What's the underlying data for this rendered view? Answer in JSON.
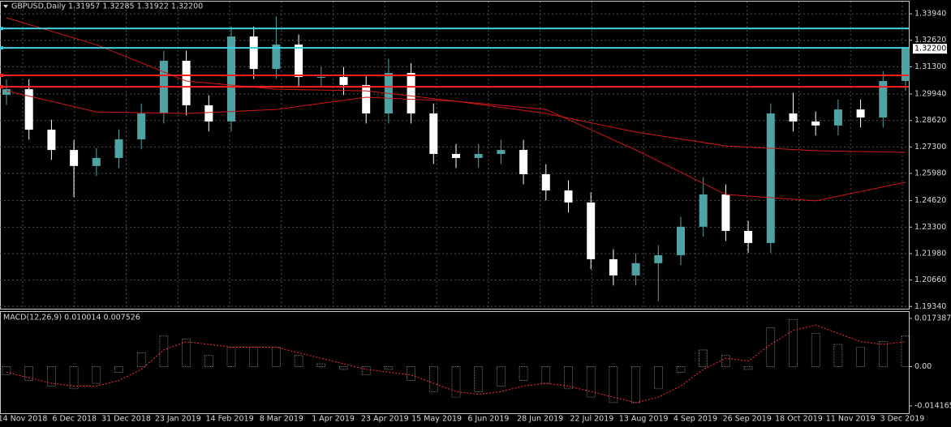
{
  "chart_data": [
    {
      "type": "candlestick",
      "title": "GBPUSD,Daily  1.31957 1.32285 1.31922 1.32200",
      "open": [
        1.299,
        1.3018,
        1.2816,
        1.2715,
        1.2635,
        1.2675,
        1.2768,
        1.2897,
        1.316,
        1.2938,
        1.2857,
        1.3281,
        1.3119,
        1.3241,
        1.3079,
        1.3079,
        1.3039,
        1.2897,
        1.3099,
        1.2897,
        1.2695,
        1.2675,
        1.2695,
        1.2715,
        1.2594,
        1.2513,
        1.2453,
        1.217,
        1.2089,
        1.215,
        1.219,
        1.2332,
        1.2493,
        1.2311,
        1.2251,
        1.2897,
        1.2857,
        1.2837,
        1.2917,
        1.2877,
        1.3059
      ],
      "high": [
        1.3068,
        1.3068,
        1.2866,
        1.2765,
        1.2725,
        1.2818,
        1.2947,
        1.321,
        1.321,
        1.2988,
        1.3331,
        1.3331,
        1.3381,
        1.3291,
        1.3129,
        1.3129,
        1.3089,
        1.317,
        1.3149,
        1.2947,
        1.2745,
        1.2745,
        1.2765,
        1.2765,
        1.2644,
        1.2563,
        1.2503,
        1.222,
        1.22,
        1.224,
        1.2382,
        1.258,
        1.2543,
        1.2361,
        1.2947,
        1.3,
        1.2907,
        1.2967,
        1.2967,
        1.3109,
        1.3229
      ],
      "low": [
        1.294,
        1.2766,
        1.2665,
        1.248,
        1.2585,
        1.2625,
        1.2718,
        1.2847,
        1.2888,
        1.2807,
        1.2807,
        1.3069,
        1.3069,
        1.3029,
        1.3029,
        1.2989,
        1.2847,
        1.2847,
        1.2847,
        1.2645,
        1.2625,
        1.2625,
        1.2645,
        1.2544,
        1.2463,
        1.2403,
        1.212,
        1.2039,
        1.2039,
        1.196,
        1.214,
        1.2282,
        1.2261,
        1.2201,
        1.2201,
        1.2807,
        1.2787,
        1.2787,
        1.2827,
        1.2827,
        1.3009
      ],
      "close": [
        1.3018,
        1.2816,
        1.2715,
        1.2635,
        1.2675,
        1.2768,
        1.2897,
        1.316,
        1.2938,
        1.2857,
        1.3281,
        1.3119,
        1.3241,
        1.3079,
        1.3079,
        1.3039,
        1.2897,
        1.3099,
        1.2897,
        1.2695,
        1.2675,
        1.2695,
        1.2715,
        1.2594,
        1.2513,
        1.2453,
        1.217,
        1.2089,
        1.215,
        1.219,
        1.2332,
        1.2493,
        1.2311,
        1.2251,
        1.2897,
        1.2857,
        1.2837,
        1.2917,
        1.2877,
        1.3059,
        1.322
      ],
      "up_color": "#4fa3a3",
      "down_color": "#ffffff",
      "ylim": [
        1.1923,
        1.3455
      ],
      "yticks": [
        {
          "value": 1.3394,
          "label": "1.33940"
        },
        {
          "value": 1.3262,
          "label": "1.32620"
        },
        {
          "value": 1.313,
          "label": "1.31300"
        },
        {
          "value": 1.2994,
          "label": "1.29940"
        },
        {
          "value": 1.2862,
          "label": "1.28620"
        },
        {
          "value": 1.273,
          "label": "1.27300"
        },
        {
          "value": 1.2598,
          "label": "1.25980"
        },
        {
          "value": 1.2462,
          "label": "1.24620"
        },
        {
          "value": 1.233,
          "label": "1.23300"
        },
        {
          "value": 1.2198,
          "label": "1.21980"
        },
        {
          "value": 1.2066,
          "label": "1.20660"
        },
        {
          "value": 1.1934,
          "label": "1.19340"
        }
      ],
      "grid": true,
      "grid_color": "#505050",
      "hlines": [
        {
          "value": 1.3321,
          "color": "#3fd0e0"
        },
        {
          "value": 1.3224,
          "color": "#3fd0e0"
        },
        {
          "value": 1.3087,
          "color": "#ff2020"
        },
        {
          "value": 1.303,
          "color": "#ff2020"
        }
      ],
      "ma": [
        {
          "color": "#d01818",
          "x": [
            0,
            4,
            8,
            12,
            16,
            20,
            24,
            28,
            32,
            36,
            40
          ],
          "values": [
            1.3374,
            1.324,
            1.3059,
            1.3018,
            1.301,
            1.2958,
            1.2897,
            1.2804,
            1.2735,
            1.2711,
            1.2703
          ]
        },
        {
          "color": "#d01818",
          "x": [
            0,
            4,
            8,
            12,
            16,
            20,
            24,
            28,
            32,
            36,
            40
          ],
          "values": [
            1.301,
            1.2905,
            1.2897,
            1.2917,
            1.2978,
            1.2958,
            1.2917,
            1.2715,
            1.2493,
            1.2461,
            1.2554
          ]
        }
      ],
      "current_price": {
        "value": 1.322,
        "label": "1.32200"
      },
      "xlabels": [
        "14 Nov 2018",
        "6 Dec 2018",
        "31 Dec 2018",
        "23 Jan 2019",
        "14 Feb 2019",
        "8 Mar 2019",
        "1 Apr 2019",
        "23 Apr 2019",
        "15 May 2019",
        "6 Jun 2019",
        "28 Jun 2019",
        "22 Jul 2019",
        "13 Aug 2019",
        "4 Sep 2019",
        "26 Sep 2019",
        "18 Oct 2019",
        "11 Nov 2019",
        "3 Dec 2019"
      ]
    },
    {
      "type": "macd",
      "title": "MACD(12,26,9) 0.010014 0.007526",
      "histogram": {
        "color": "#c8c8c8",
        "values": [
          -0.003,
          -0.005,
          -0.007,
          -0.008,
          -0.006,
          -0.002,
          0.005,
          0.011,
          0.01,
          0.004,
          0.007,
          0.007,
          0.007,
          0.004,
          0.001,
          -0.001,
          -0.003,
          -0.001,
          -0.005,
          -0.009,
          -0.011,
          -0.009,
          -0.007,
          -0.005,
          -0.006,
          -0.008,
          -0.011,
          -0.013,
          -0.013,
          -0.008,
          -0.002,
          0.006,
          0.004,
          -0.001,
          0.014,
          0.017,
          0.012,
          0.008,
          0.007,
          0.009,
          0.011
        ]
      },
      "signal": {
        "color": "#ff3030",
        "values": [
          -0.002,
          -0.004,
          -0.006,
          -0.007,
          -0.007,
          -0.005,
          -0.001,
          0.006,
          0.009,
          0.008,
          0.007,
          0.007,
          0.007,
          0.005,
          0.003,
          0.001,
          -0.001,
          -0.002,
          -0.003,
          -0.006,
          -0.009,
          -0.01,
          -0.009,
          -0.007,
          -0.006,
          -0.007,
          -0.009,
          -0.011,
          -0.013,
          -0.011,
          -0.007,
          -0.001,
          0.003,
          0.002,
          0.008,
          0.013,
          0.015,
          0.012,
          0.009,
          0.008,
          0.009
        ]
      },
      "ylim": [
        -0.0168,
        0.0197
      ],
      "yticks": [
        0.017387,
        {
          "value": 0,
          "label": "0.00"
        },
        -0.014165
      ]
    }
  ]
}
